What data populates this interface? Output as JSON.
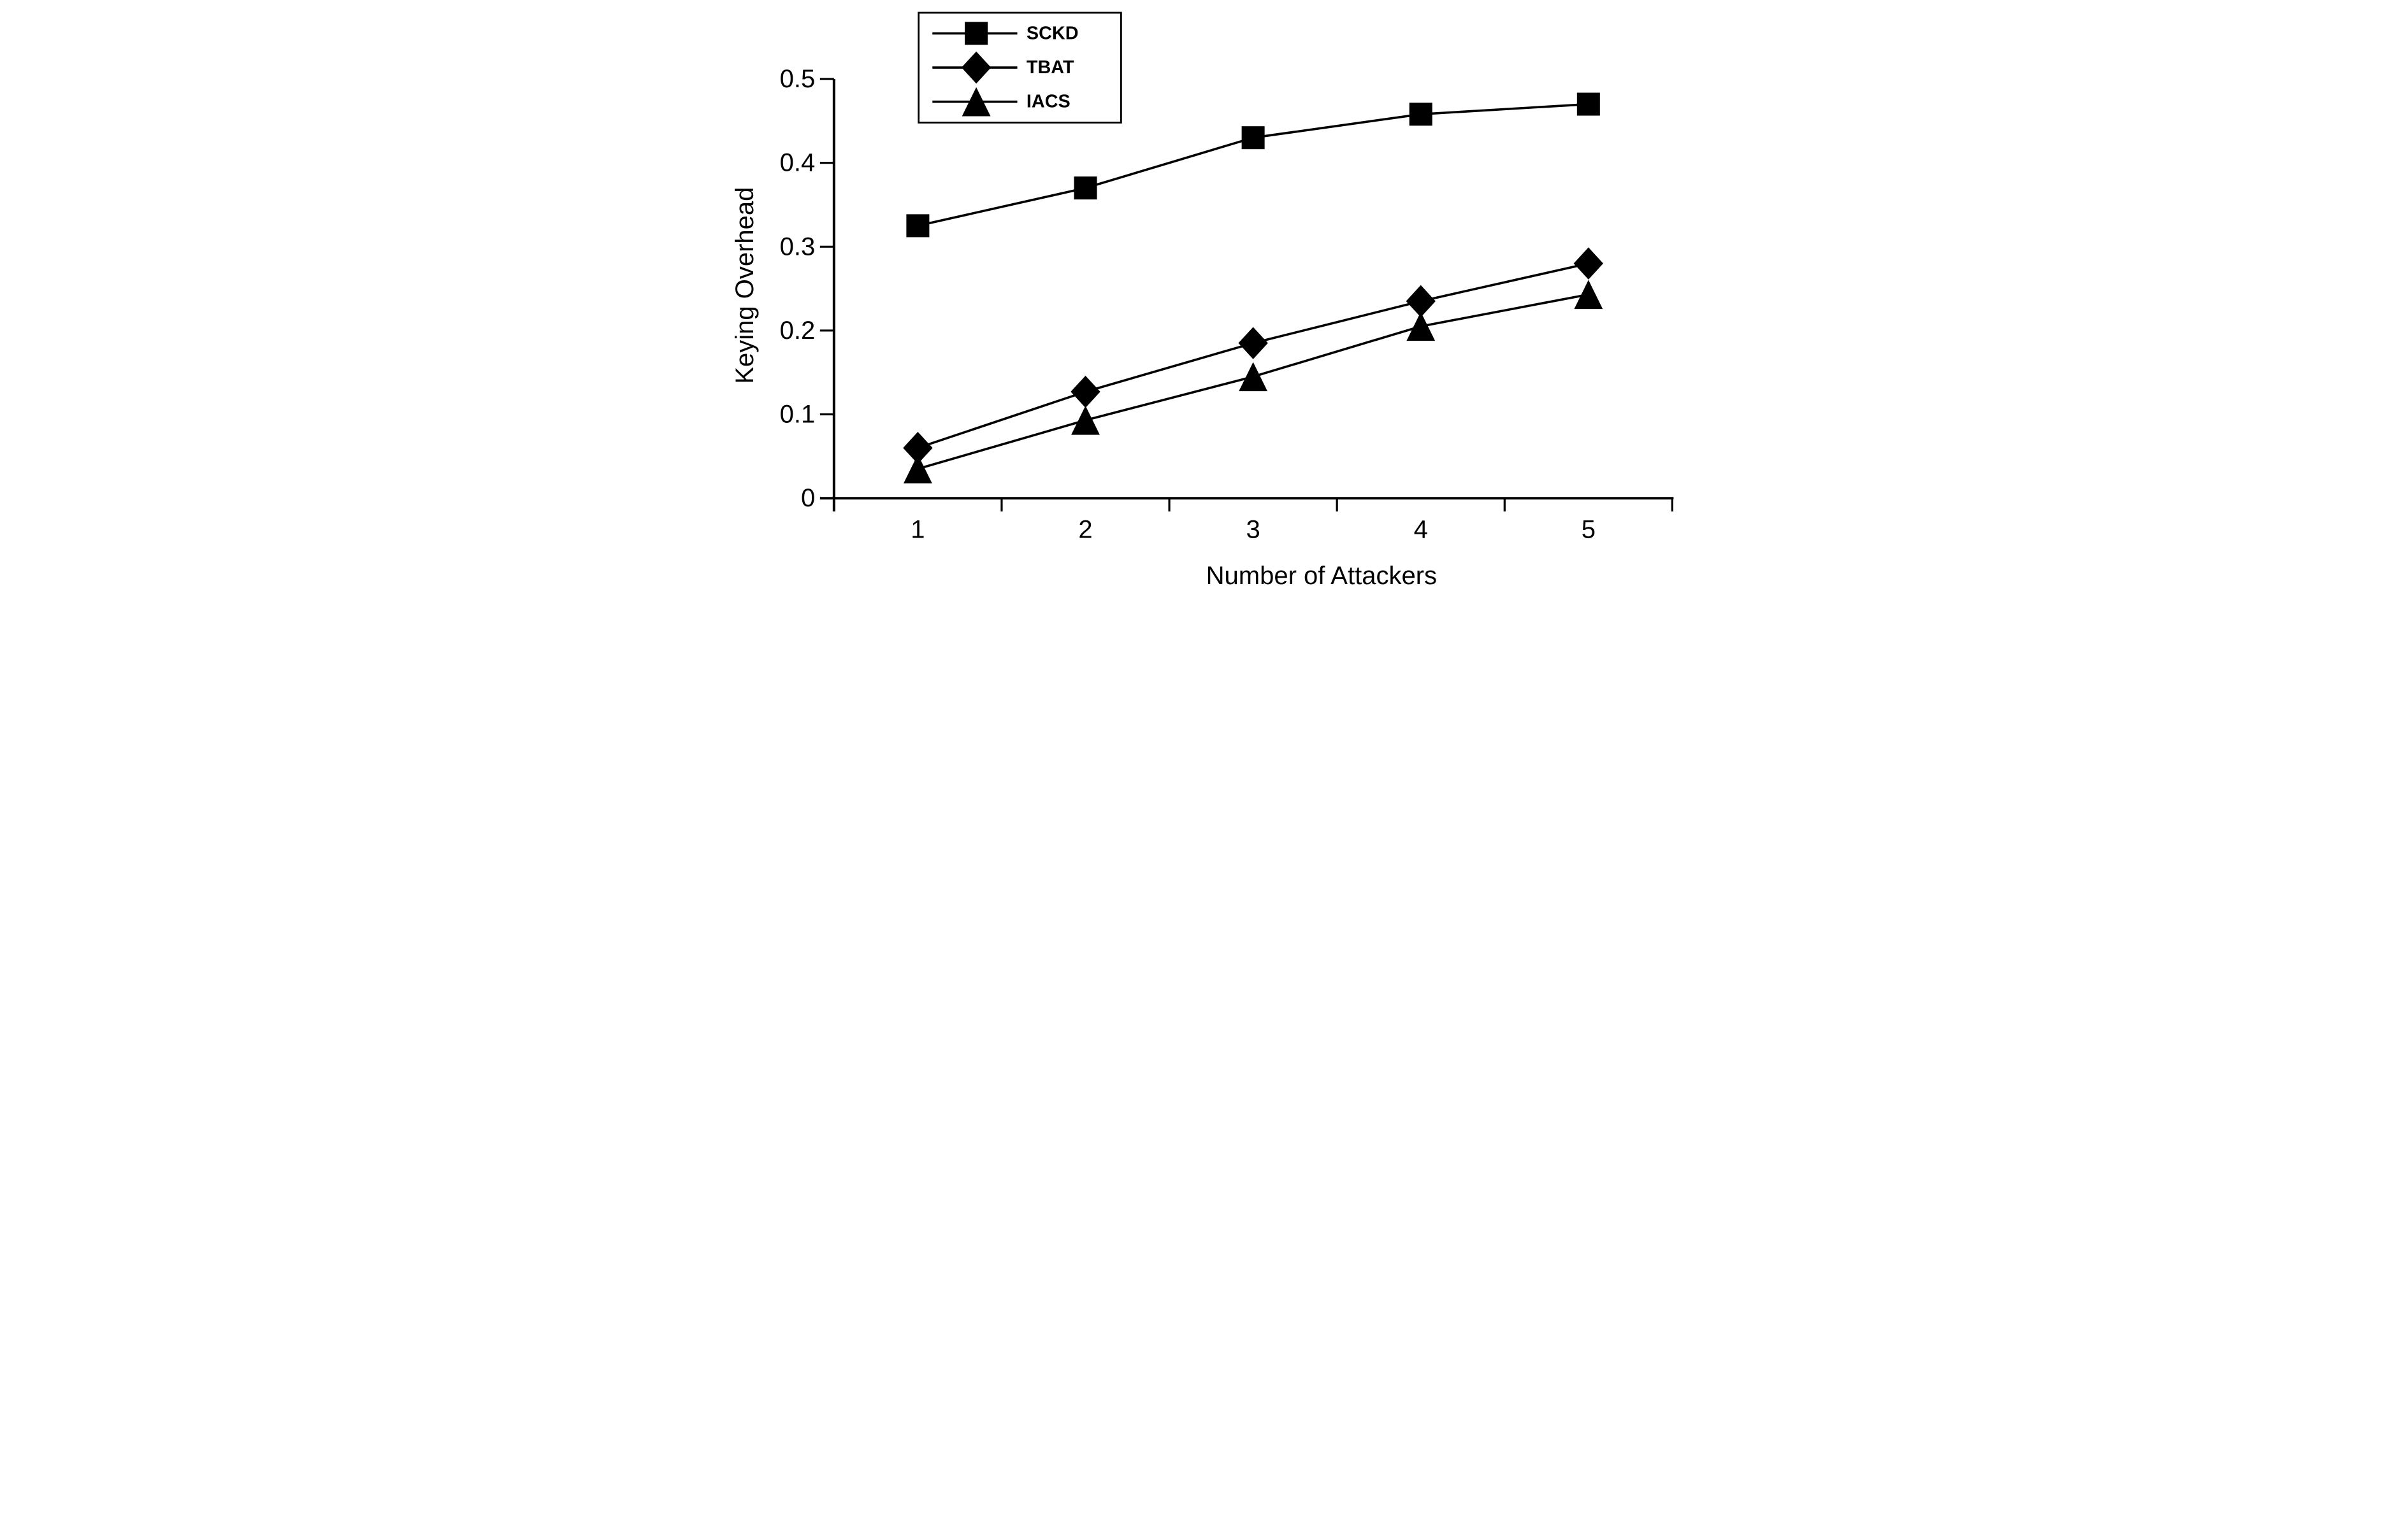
{
  "figure": {
    "background": "#ffffff",
    "ink_color": "#000000"
  },
  "chart_data": {
    "type": "line",
    "title": "",
    "xlabel": "Number of Attackers",
    "ylabel": "Keying Overhead",
    "x": [
      1,
      2,
      3,
      4,
      5
    ],
    "xtick_labels": [
      "1",
      "2",
      "3",
      "4",
      "5"
    ],
    "yticks": [
      0,
      0.1,
      0.2,
      0.3,
      0.4,
      0.5
    ],
    "ytick_labels": [
      "0",
      "0.1",
      "0.2",
      "0.3",
      "0.4",
      "0.5"
    ],
    "ylim": [
      0,
      0.5
    ],
    "grid": false,
    "legend": {
      "position": "top-left",
      "border": true,
      "entries": [
        "SCKD",
        "TBAT",
        "IACS"
      ]
    },
    "series": [
      {
        "name": "SCKD",
        "marker": "square",
        "color": "#000000",
        "values": [
          0.325,
          0.37,
          0.43,
          0.458,
          0.47
        ]
      },
      {
        "name": "TBAT",
        "marker": "diamond",
        "color": "#000000",
        "values": [
          0.06,
          0.127,
          0.185,
          0.235,
          0.28
        ]
      },
      {
        "name": "IACS",
        "marker": "triangle",
        "color": "#000000",
        "values": [
          0.035,
          0.093,
          0.145,
          0.205,
          0.243
        ]
      }
    ]
  }
}
